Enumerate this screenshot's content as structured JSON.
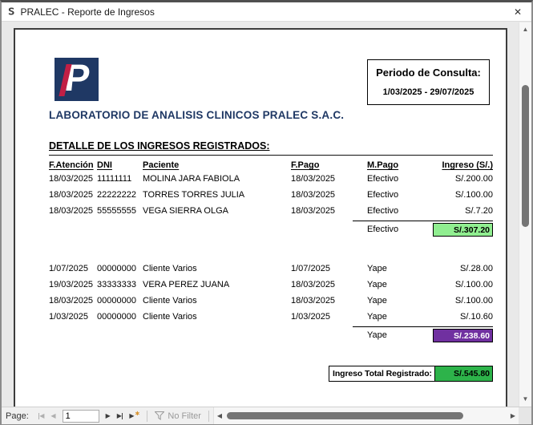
{
  "window": {
    "title": "PRALEC - Reporte de Ingresos",
    "app_icon": "S",
    "close_icon": "✕"
  },
  "report": {
    "logo_letter": "P",
    "period_box": {
      "label": "Periodo de Consulta:",
      "range": "1/03/2025 - 29/07/2025"
    },
    "company_title": "LABORATORIO DE ANALISIS CLINICOS PRALEC S.A.C.",
    "section_title": "DETALLE DE LOS INGRESOS REGISTRADOS:",
    "columns": [
      "F.Atención",
      "DNI",
      "Paciente",
      "F.Pago",
      "M.Pago",
      "Ingreso (S/.)"
    ],
    "groups": [
      {
        "rows": [
          {
            "f_atencion": "18/03/2025",
            "dni": "11111111",
            "paciente": "MOLINA JARA FABIOLA",
            "f_pago": "18/03/2025",
            "m_pago": "Efectivo",
            "ingreso": "S/.200.00"
          },
          {
            "f_atencion": "18/03/2025",
            "dni": "22222222",
            "paciente": "TORRES TORRES JULIA",
            "f_pago": "18/03/2025",
            "m_pago": "Efectivo",
            "ingreso": "S/.100.00"
          },
          {
            "f_atencion": "18/03/2025",
            "dni": "55555555",
            "paciente": "VEGA SIERRA OLGA",
            "f_pago": "18/03/2025",
            "m_pago": "Efectivo",
            "ingreso": "S/.7.20"
          }
        ],
        "subtotal": {
          "label": "Efectivo",
          "amount": "S/.307.20",
          "bg": "#90ee90",
          "fg": "#000000"
        }
      },
      {
        "rows": [
          {
            "f_atencion": "1/07/2025",
            "dni": "00000000",
            "paciente": "Cliente Varios",
            "f_pago": "1/07/2025",
            "m_pago": "Yape",
            "ingreso": "S/.28.00"
          },
          {
            "f_atencion": "19/03/2025",
            "dni": "33333333",
            "paciente": "VERA PEREZ JUANA",
            "f_pago": "18/03/2025",
            "m_pago": "Yape",
            "ingreso": "S/.100.00"
          },
          {
            "f_atencion": "18/03/2025",
            "dni": "00000000",
            "paciente": "Cliente Varios",
            "f_pago": "18/03/2025",
            "m_pago": "Yape",
            "ingreso": "S/.100.00"
          },
          {
            "f_atencion": "1/03/2025",
            "dni": "00000000",
            "paciente": "Cliente Varios",
            "f_pago": "1/03/2025",
            "m_pago": "Yape",
            "ingreso": "S/.10.60"
          }
        ],
        "subtotal": {
          "label": "Yape",
          "amount": "S/.238.60",
          "bg": "#7030a0",
          "fg": "#ffffff"
        }
      }
    ],
    "total": {
      "label": "Ingreso Total Registrado:",
      "amount": "S/.545.80",
      "bg": "#2db34a",
      "fg": "#000000"
    }
  },
  "nav": {
    "page_label": "Page:",
    "page_value": "1",
    "no_filter_label": "No Filter"
  },
  "colors": {
    "brand_navy": "#1f3864",
    "brand_red": "#c11f45",
    "subtotal_green": "#90ee90",
    "subtotal_purple": "#7030a0",
    "total_green": "#2db34a"
  }
}
